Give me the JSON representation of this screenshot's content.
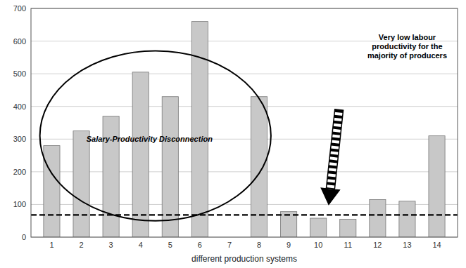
{
  "chart_data": {
    "type": "bar",
    "xlabel": "different production systems",
    "categories": [
      1,
      2,
      3,
      4,
      5,
      6,
      7,
      8,
      9,
      10,
      11,
      12,
      13,
      14
    ],
    "values": [
      280,
      325,
      370,
      505,
      430,
      660,
      0,
      430,
      78,
      58,
      55,
      115,
      110,
      310
    ],
    "color": "#c8c8c8",
    "ylim": [
      0,
      700
    ],
    "yticks": [
      0,
      100,
      200,
      300,
      400,
      500,
      600,
      700
    ],
    "grid": true,
    "min_wage": 68,
    "annotations": [
      "Salary-Productivity Disconnection",
      "Very low labour\nproductivity for the\nmajority of producers"
    ]
  }
}
